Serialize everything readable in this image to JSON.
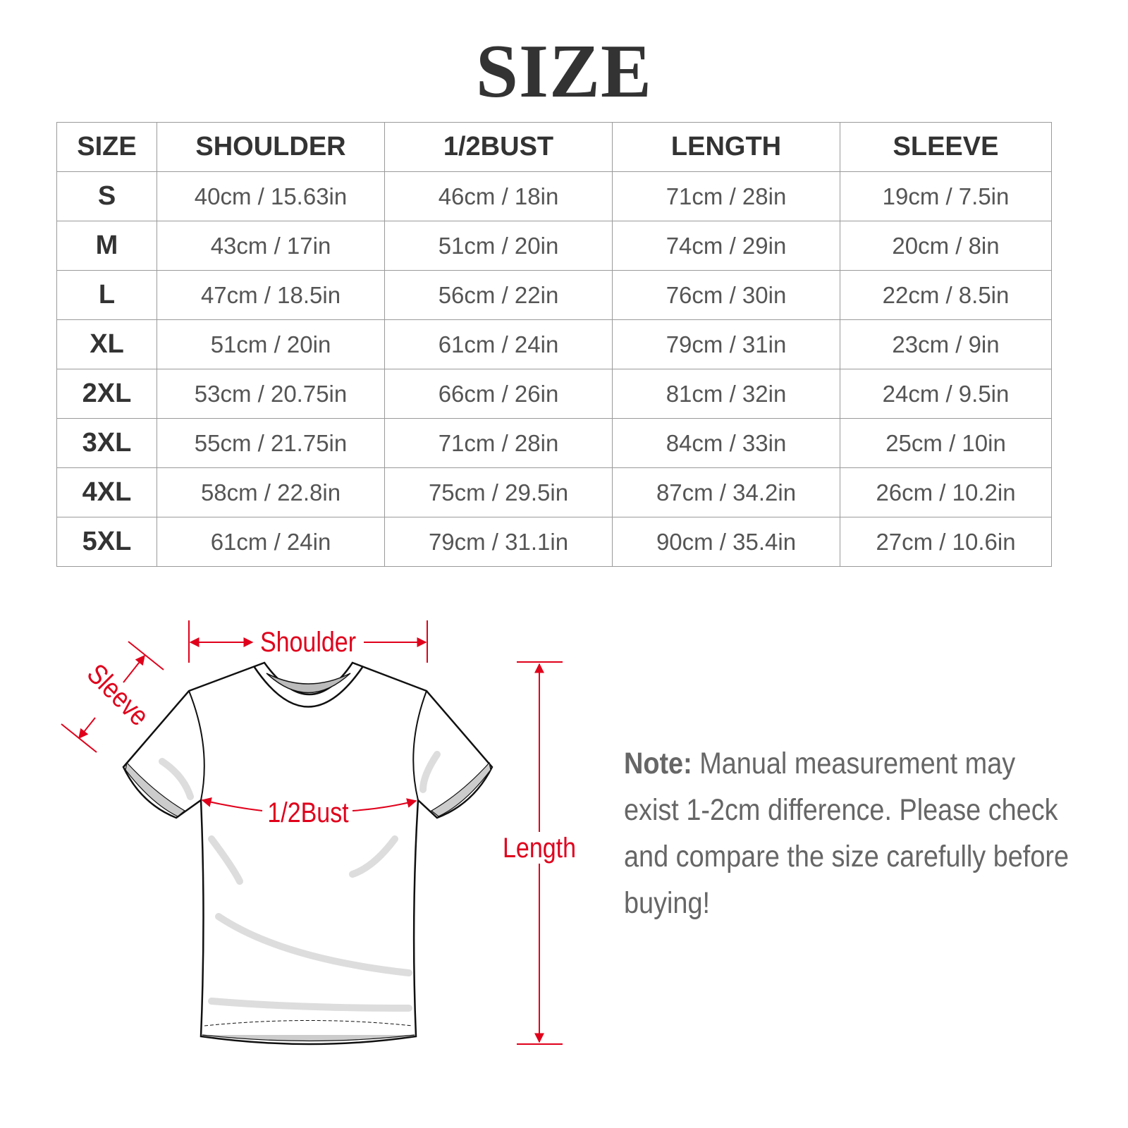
{
  "title": "SIZE",
  "table": {
    "headers": [
      "SIZE",
      "SHOULDER",
      "1/2BUST",
      "LENGTH",
      "SLEEVE"
    ],
    "rows": [
      [
        "S",
        "40cm / 15.63in",
        "46cm / 18in",
        "71cm / 28in",
        "19cm / 7.5in"
      ],
      [
        "M",
        "43cm / 17in",
        "51cm / 20in",
        "74cm / 29in",
        "20cm / 8in"
      ],
      [
        "L",
        "47cm / 18.5in",
        "56cm / 22in",
        "76cm / 30in",
        "22cm / 8.5in"
      ],
      [
        "XL",
        "51cm / 20in",
        "61cm / 24in",
        "79cm / 31in",
        "23cm / 9in"
      ],
      [
        "2XL",
        "53cm / 20.75in",
        "66cm / 26in",
        "81cm / 32in",
        "24cm / 9.5in"
      ],
      [
        "3XL",
        "55cm / 21.75in",
        "71cm / 28in",
        "84cm / 33in",
        "25cm / 10in"
      ],
      [
        "4XL",
        "58cm / 22.8in",
        "75cm / 29.5in",
        "87cm / 34.2in",
        "26cm / 10.2in"
      ],
      [
        "5XL",
        "61cm / 24in",
        "79cm / 31.1in",
        "90cm / 35.4in",
        "27cm / 10.6in"
      ]
    ]
  },
  "diagram": {
    "labels": {
      "shoulder": "Shoulder",
      "sleeve": "Sleeve",
      "bust": "1/2Bust",
      "length": "Length"
    },
    "accent_color": "#e0001b"
  },
  "note": {
    "label": "Note:",
    "text": " Manual measurement may exist 1-2cm difference. Please check and compare the size carefully before buying!"
  }
}
